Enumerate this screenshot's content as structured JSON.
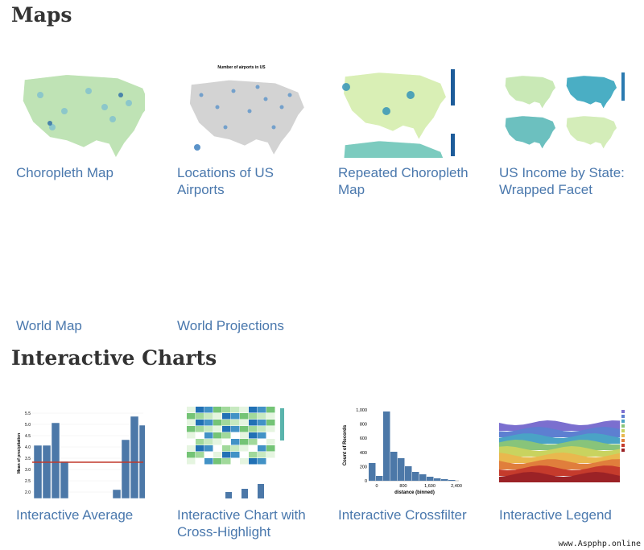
{
  "sections": [
    {
      "title": "Maps",
      "items": [
        {
          "caption": "Choropleth Map"
        },
        {
          "caption": "Locations of US Airports",
          "thumb_title": "Number of airports in US"
        },
        {
          "caption": "Repeated Choropleth Map"
        },
        {
          "caption": "US Income by State: Wrapped Facet"
        },
        {
          "caption": "World Map"
        },
        {
          "caption": "World Projections"
        }
      ]
    },
    {
      "title": "Interactive Charts",
      "items": [
        {
          "caption": "Interactive Average",
          "y_title": "Mean of precipitation",
          "yticks": [
            "5.5",
            "5.0",
            "4.5",
            "4.0",
            "3.5",
            "3.0",
            "2.5",
            "2.0"
          ]
        },
        {
          "caption": "Interactive Chart with Cross-Highlight"
        },
        {
          "caption": "Interactive Crossfilter",
          "y_title": "Count of Records",
          "x_title": "distance (binned)",
          "yticks": [
            "1,000",
            "800",
            "600",
            "400",
            "200",
            "0"
          ],
          "xticks": [
            "0",
            "800",
            "1,600",
            "2,400"
          ]
        },
        {
          "caption": "Interactive Legend"
        }
      ]
    }
  ],
  "watermark": "www.Aspphp.online"
}
